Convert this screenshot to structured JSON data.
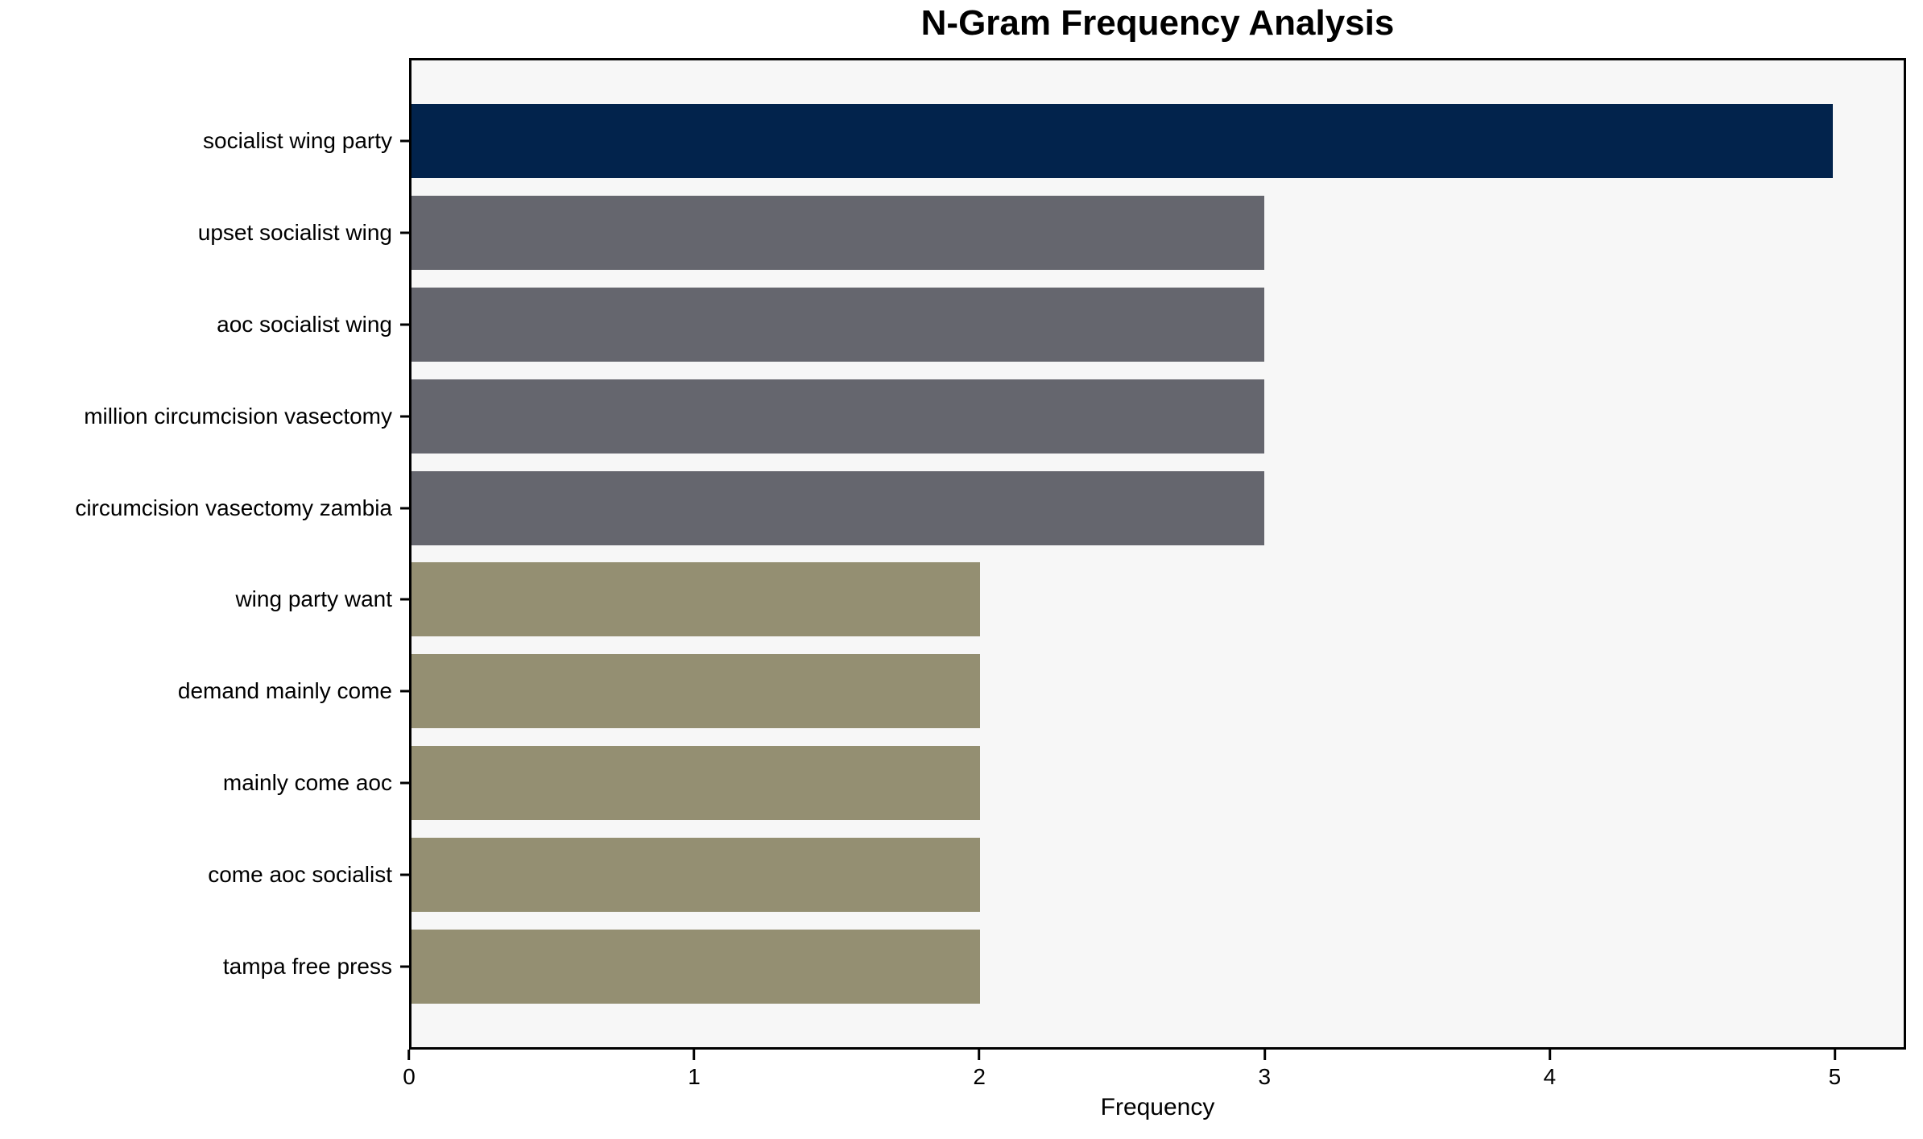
{
  "chart_data": {
    "type": "bar",
    "orientation": "horizontal",
    "title": "N-Gram Frequency Analysis",
    "xlabel": "Frequency",
    "ylabel": "",
    "categories": [
      "socialist wing party",
      "upset socialist wing",
      "aoc socialist wing",
      "million circumcision vasectomy",
      "circumcision vasectomy zambia",
      "wing party want",
      "demand mainly come",
      "mainly come aoc",
      "come aoc socialist",
      "tampa free press"
    ],
    "values": [
      5,
      3,
      3,
      3,
      3,
      2,
      2,
      2,
      2,
      2
    ],
    "bar_colors": [
      "#02234c",
      "#65666e",
      "#65666e",
      "#65666e",
      "#65666e",
      "#948f72",
      "#948f72",
      "#948f72",
      "#948f72",
      "#948f72"
    ],
    "x_ticks": [
      0,
      1,
      2,
      3,
      4,
      5
    ],
    "xlim": [
      0,
      5.25
    ],
    "grid": false,
    "legend_position": "none",
    "plot_background": "#f7f7f7",
    "page_background": "#ffffff",
    "axis_color": "#000000"
  }
}
